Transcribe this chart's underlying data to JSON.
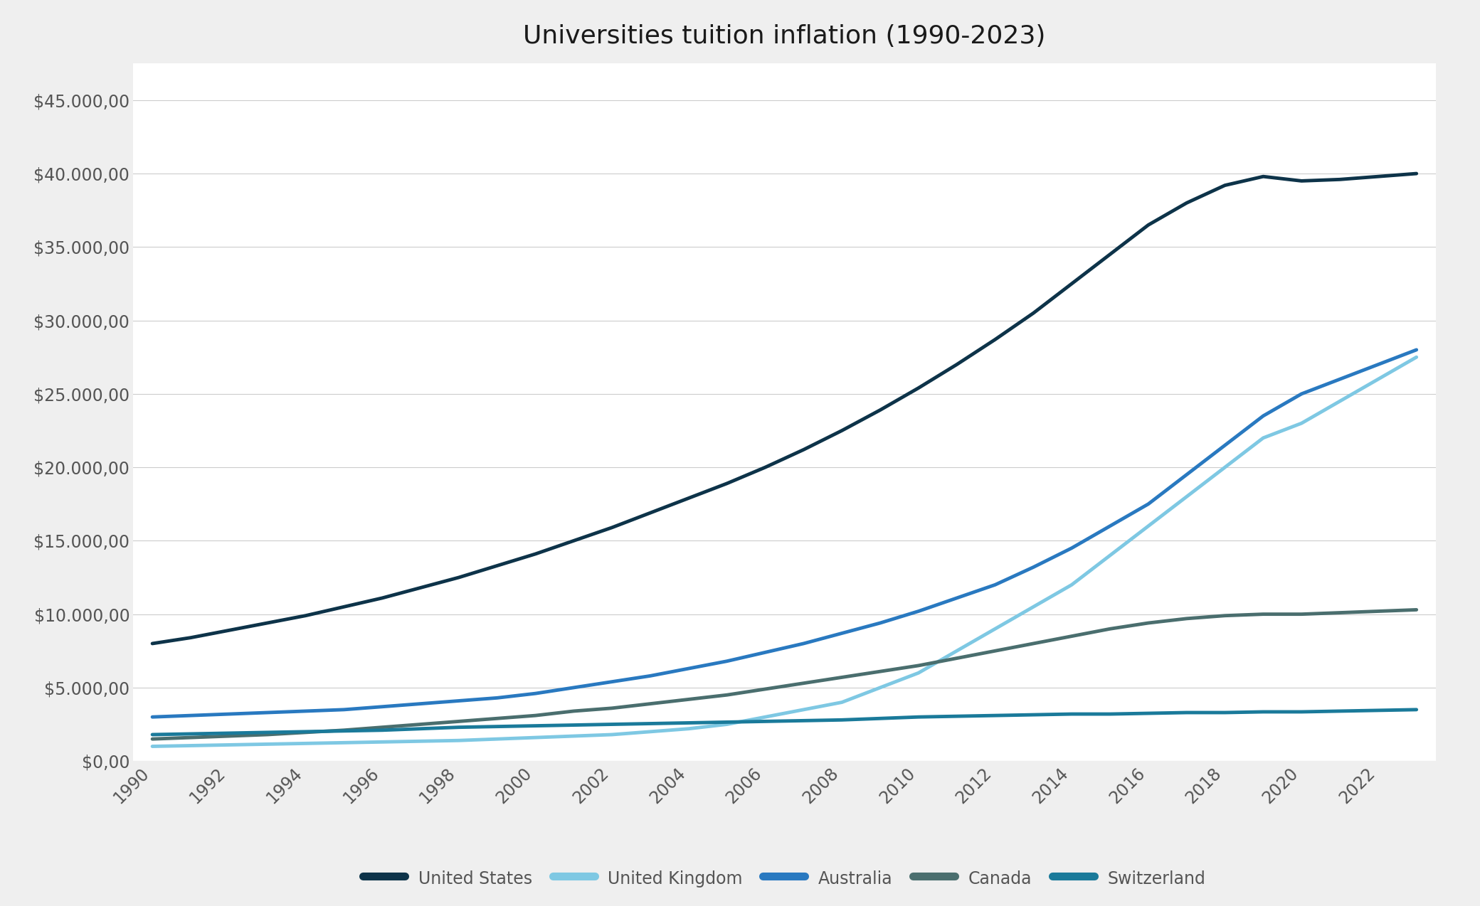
{
  "title": "Universities tuition inflation (1990-2023)",
  "title_fontsize": 26,
  "background_color": "#efefef",
  "plot_bg_color": "#ffffff",
  "years": [
    1990,
    1991,
    1992,
    1993,
    1994,
    1995,
    1996,
    1997,
    1998,
    1999,
    2000,
    2001,
    2002,
    2003,
    2004,
    2005,
    2006,
    2007,
    2008,
    2009,
    2010,
    2011,
    2012,
    2013,
    2014,
    2015,
    2016,
    2017,
    2018,
    2019,
    2020,
    2021,
    2022,
    2023
  ],
  "series": {
    "United States": {
      "color": "#0d3349",
      "linewidth": 3.5,
      "values": [
        8000,
        8400,
        8900,
        9400,
        9900,
        10500,
        11100,
        11800,
        12500,
        13300,
        14100,
        15000,
        15900,
        16900,
        17900,
        18900,
        20000,
        21200,
        22500,
        23900,
        25400,
        27000,
        28700,
        30500,
        32500,
        34500,
        36500,
        38000,
        39200,
        39800,
        39500,
        39600,
        39800,
        40000
      ]
    },
    "United Kingdom": {
      "color": "#7ec8e3",
      "linewidth": 3.5,
      "values": [
        1000,
        1050,
        1100,
        1150,
        1200,
        1250,
        1300,
        1350,
        1400,
        1500,
        1600,
        1700,
        1800,
        2000,
        2200,
        2500,
        3000,
        3500,
        4000,
        5000,
        6000,
        7500,
        9000,
        10500,
        12000,
        14000,
        16000,
        18000,
        20000,
        22000,
        23000,
        24500,
        26000,
        27500
      ]
    },
    "Australia": {
      "color": "#2979c0",
      "linewidth": 3.5,
      "values": [
        3000,
        3100,
        3200,
        3300,
        3400,
        3500,
        3700,
        3900,
        4100,
        4300,
        4600,
        5000,
        5400,
        5800,
        6300,
        6800,
        7400,
        8000,
        8700,
        9400,
        10200,
        11100,
        12000,
        13200,
        14500,
        16000,
        17500,
        19500,
        21500,
        23500,
        25000,
        26000,
        27000,
        28000
      ]
    },
    "Canada": {
      "color": "#4a6e6e",
      "linewidth": 3.5,
      "values": [
        1500,
        1600,
        1700,
        1800,
        1950,
        2100,
        2300,
        2500,
        2700,
        2900,
        3100,
        3400,
        3600,
        3900,
        4200,
        4500,
        4900,
        5300,
        5700,
        6100,
        6500,
        7000,
        7500,
        8000,
        8500,
        9000,
        9400,
        9700,
        9900,
        10000,
        10000,
        10100,
        10200,
        10300
      ]
    },
    "Switzerland": {
      "color": "#1a7a9a",
      "linewidth": 3.5,
      "values": [
        1800,
        1850,
        1900,
        1950,
        2000,
        2050,
        2100,
        2200,
        2300,
        2350,
        2400,
        2450,
        2500,
        2550,
        2600,
        2650,
        2700,
        2750,
        2800,
        2900,
        3000,
        3050,
        3100,
        3150,
        3200,
        3200,
        3250,
        3300,
        3300,
        3350,
        3350,
        3400,
        3450,
        3500
      ]
    }
  },
  "ylim": [
    0,
    47500
  ],
  "yticks": [
    0,
    5000,
    10000,
    15000,
    20000,
    25000,
    30000,
    35000,
    40000,
    45000
  ],
  "ylabel_color": "#555555",
  "tick_color": "#555555",
  "grid_color": "#cccccc",
  "legend_fontsize": 17,
  "tick_fontsize": 17
}
